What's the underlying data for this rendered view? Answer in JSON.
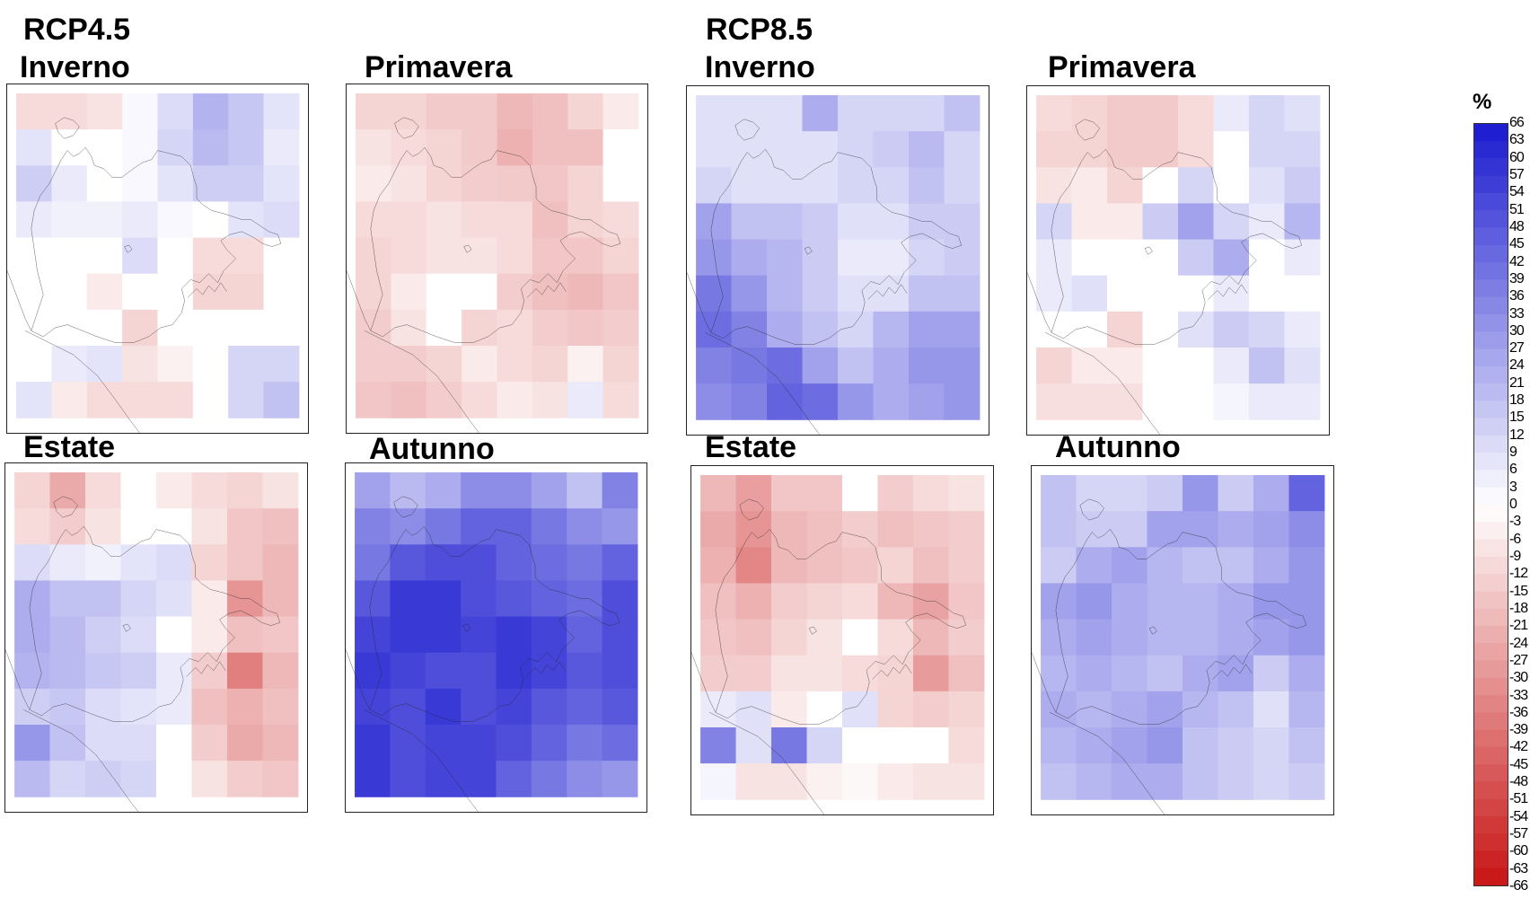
{
  "scenarios": [
    {
      "label": "RCP4.5"
    },
    {
      "label": "RCP8.5"
    }
  ],
  "seasons": [
    "Inverno",
    "Primavera",
    "Estate",
    "Autunno"
  ],
  "colorbar": {
    "unit": "%",
    "ticks": [
      66,
      63,
      60,
      57,
      54,
      51,
      48,
      45,
      42,
      39,
      36,
      33,
      30,
      27,
      24,
      21,
      18,
      15,
      12,
      9,
      6,
      3,
      0,
      -3,
      -6,
      -9,
      -12,
      -15,
      -18,
      -21,
      -24,
      -27,
      -30,
      -33,
      -36,
      -39,
      -42,
      -45,
      -48,
      -51,
      -54,
      -57,
      -60,
      -63,
      -66
    ],
    "positive_color": "#1a1ad0",
    "negative_color": "#c81414"
  },
  "panels": [
    {
      "id": "rcp45-inverno",
      "scenario": "RCP4.5",
      "season": "Inverno",
      "grid": [
        [
          -10,
          -10,
          -8,
          2,
          10,
          22,
          16,
          8
        ],
        [
          8,
          0,
          0,
          2,
          12,
          20,
          16,
          6
        ],
        [
          14,
          6,
          0,
          2,
          8,
          14,
          14,
          8
        ],
        [
          6,
          4,
          4,
          6,
          2,
          0,
          8,
          10
        ],
        [
          0,
          0,
          0,
          10,
          0,
          -10,
          -10,
          0
        ],
        [
          0,
          0,
          -6,
          0,
          0,
          -12,
          -12,
          0
        ],
        [
          0,
          0,
          0,
          -12,
          0,
          0,
          0,
          0
        ],
        [
          0,
          6,
          8,
          -8,
          -4,
          0,
          12,
          12
        ],
        [
          8,
          -6,
          -10,
          -10,
          -10,
          0,
          12,
          18
        ]
      ]
    },
    {
      "id": "rcp45-primavera",
      "scenario": "RCP4.5",
      "season": "Primavera",
      "grid": [
        [
          -12,
          -12,
          -15,
          -15,
          -20,
          -18,
          -12,
          -6
        ],
        [
          -8,
          -10,
          -12,
          -15,
          -22,
          -18,
          -18,
          0
        ],
        [
          -6,
          -8,
          -12,
          -14,
          -15,
          -16,
          -12,
          0
        ],
        [
          -10,
          -10,
          -8,
          -10,
          -10,
          -18,
          -12,
          -10
        ],
        [
          -12,
          -10,
          -8,
          -8,
          -10,
          -16,
          -16,
          -12
        ],
        [
          -12,
          -6,
          0,
          0,
          -14,
          -18,
          -20,
          -16
        ],
        [
          -14,
          -8,
          0,
          -12,
          -10,
          -14,
          -16,
          -14
        ],
        [
          -14,
          -14,
          -12,
          -6,
          -10,
          -12,
          -4,
          -12
        ],
        [
          -16,
          -18,
          -14,
          -10,
          -6,
          -8,
          6,
          -10
        ]
      ]
    },
    {
      "id": "rcp85-inverno",
      "scenario": "RCP8.5",
      "season": "Inverno",
      "grid": [
        [
          9,
          9,
          9,
          24,
          12,
          12,
          12,
          18
        ],
        [
          9,
          9,
          9,
          9,
          12,
          15,
          20,
          12
        ],
        [
          12,
          9,
          9,
          9,
          12,
          12,
          18,
          12
        ],
        [
          27,
          18,
          18,
          15,
          9,
          9,
          15,
          15
        ],
        [
          30,
          24,
          21,
          15,
          6,
          6,
          12,
          15
        ],
        [
          39,
          30,
          21,
          15,
          9,
          9,
          18,
          18
        ],
        [
          42,
          36,
          24,
          18,
          12,
          21,
          27,
          27
        ],
        [
          36,
          39,
          42,
          27,
          18,
          24,
          30,
          30
        ],
        [
          33,
          36,
          45,
          42,
          30,
          24,
          27,
          30
        ]
      ]
    },
    {
      "id": "rcp85-primavera",
      "scenario": "RCP8.5",
      "season": "Primavera",
      "grid": [
        [
          -10,
          -12,
          -15,
          -15,
          -10,
          6,
          12,
          9
        ],
        [
          -12,
          -12,
          -15,
          -15,
          -10,
          0,
          12,
          12
        ],
        [
          -8,
          -6,
          -12,
          0,
          12,
          0,
          9,
          15
        ],
        [
          12,
          -6,
          -6,
          15,
          27,
          12,
          6,
          21
        ],
        [
          6,
          0,
          0,
          0,
          15,
          24,
          0,
          6
        ],
        [
          6,
          9,
          0,
          0,
          0,
          6,
          0,
          0
        ],
        [
          0,
          0,
          -12,
          0,
          9,
          15,
          12,
          6
        ],
        [
          -12,
          -6,
          -6,
          0,
          0,
          6,
          18,
          9
        ],
        [
          -9,
          -9,
          -9,
          0,
          0,
          3,
          6,
          6
        ]
      ]
    },
    {
      "id": "rcp45-estate",
      "scenario": "RCP4.5",
      "season": "Estate",
      "grid": [
        [
          -12,
          -24,
          -10,
          0,
          -6,
          -10,
          -12,
          -8
        ],
        [
          -10,
          -14,
          -8,
          0,
          0,
          -8,
          -16,
          -18
        ],
        [
          10,
          6,
          4,
          8,
          10,
          -12,
          -16,
          -20
        ],
        [
          24,
          18,
          18,
          12,
          9,
          -6,
          -30,
          -20
        ],
        [
          24,
          20,
          14,
          10,
          0,
          -6,
          -18,
          -16
        ],
        [
          22,
          20,
          16,
          14,
          6,
          -14,
          -36,
          -20
        ],
        [
          14,
          16,
          10,
          8,
          6,
          -18,
          -22,
          -18
        ],
        [
          30,
          18,
          10,
          10,
          0,
          -14,
          -24,
          -20
        ],
        [
          20,
          12,
          14,
          12,
          0,
          -8,
          -14,
          -16
        ]
      ]
    },
    {
      "id": "rcp45-autunno",
      "scenario": "RCP4.5",
      "season": "Autunno",
      "grid": [
        [
          27,
          20,
          24,
          33,
          33,
          27,
          18,
          36
        ],
        [
          36,
          33,
          39,
          45,
          45,
          39,
          33,
          30
        ],
        [
          39,
          48,
          51,
          51,
          45,
          42,
          39,
          45
        ],
        [
          48,
          57,
          57,
          51,
          48,
          45,
          42,
          51
        ],
        [
          54,
          57,
          57,
          54,
          57,
          54,
          45,
          51
        ],
        [
          57,
          54,
          51,
          51,
          57,
          54,
          48,
          51
        ],
        [
          54,
          51,
          57,
          51,
          54,
          48,
          45,
          48
        ],
        [
          57,
          51,
          54,
          54,
          51,
          45,
          39,
          42
        ],
        [
          57,
          51,
          54,
          54,
          45,
          39,
          33,
          30
        ]
      ]
    },
    {
      "id": "rcp85-estate",
      "scenario": "RCP8.5",
      "season": "Estate",
      "grid": [
        [
          -20,
          -27,
          -16,
          -16,
          0,
          -14,
          -10,
          -8
        ],
        [
          -24,
          -30,
          -20,
          -18,
          -14,
          -18,
          -16,
          -14
        ],
        [
          -22,
          -34,
          -20,
          -18,
          -16,
          -12,
          -18,
          -14
        ],
        [
          -18,
          -22,
          -14,
          -12,
          -10,
          -20,
          -26,
          -16
        ],
        [
          -16,
          -18,
          -12,
          -8,
          0,
          -10,
          -20,
          -14
        ],
        [
          -14,
          -14,
          -8,
          -8,
          -10,
          -12,
          -28,
          -18
        ],
        [
          6,
          9,
          -6,
          0,
          9,
          -12,
          -14,
          -12
        ],
        [
          36,
          9,
          39,
          12,
          0,
          0,
          0,
          -10
        ],
        [
          3,
          -8,
          -8,
          -4,
          -2,
          -6,
          -8,
          -8
        ]
      ]
    },
    {
      "id": "rcp85-autunno",
      "scenario": "RCP8.5",
      "season": "Autunno",
      "grid": [
        [
          18,
          12,
          12,
          15,
          30,
          15,
          24,
          45
        ],
        [
          18,
          15,
          15,
          27,
          27,
          24,
          27,
          33
        ],
        [
          15,
          24,
          27,
          21,
          18,
          18,
          24,
          30
        ],
        [
          27,
          30,
          24,
          21,
          21,
          24,
          30,
          30
        ],
        [
          24,
          27,
          24,
          21,
          21,
          24,
          27,
          30
        ],
        [
          21,
          24,
          21,
          18,
          24,
          27,
          15,
          24
        ],
        [
          24,
          21,
          24,
          27,
          21,
          18,
          9,
          21
        ],
        [
          21,
          24,
          27,
          30,
          18,
          15,
          12,
          18
        ],
        [
          18,
          21,
          24,
          24,
          18,
          15,
          12,
          15
        ]
      ]
    }
  ]
}
